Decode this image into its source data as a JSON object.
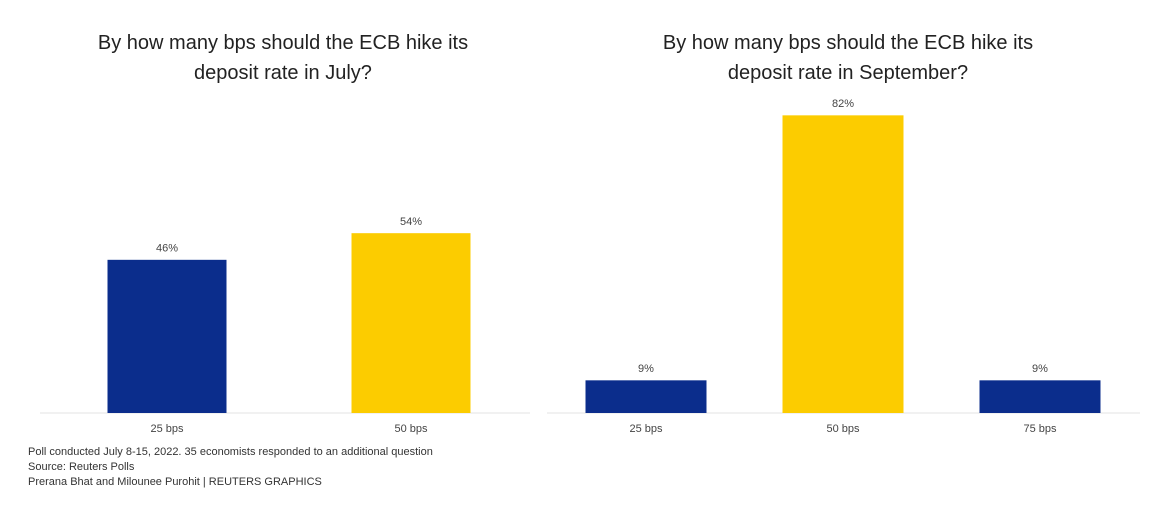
{
  "chart_data": [
    {
      "type": "bar",
      "title": "By how many bps should the ECB hike its deposit rate in July?",
      "categories": [
        "25 bps",
        "50 bps"
      ],
      "values": [
        46,
        54
      ],
      "value_labels": [
        "46%",
        "54%"
      ],
      "colors": [
        "#0b2d8c",
        "#fccc00"
      ]
    },
    {
      "type": "bar",
      "title": "By how many bps should the ECB hike its deposit rate in September?",
      "categories": [
        "25 bps",
        "50 bps",
        "75 bps"
      ],
      "values": [
        9,
        82,
        9
      ],
      "value_labels": [
        "9%",
        "82%",
        "9%"
      ],
      "colors": [
        "#0b2d8c",
        "#fccc00",
        "#0b2d8c"
      ]
    }
  ],
  "footer": [
    "Poll conducted July 8-15, 2022.  35 economists responded to an additional question",
    "Source: Reuters Polls",
    "Prerana Bhat and Milounee Purohit | REUTERS GRAPHICS"
  ]
}
